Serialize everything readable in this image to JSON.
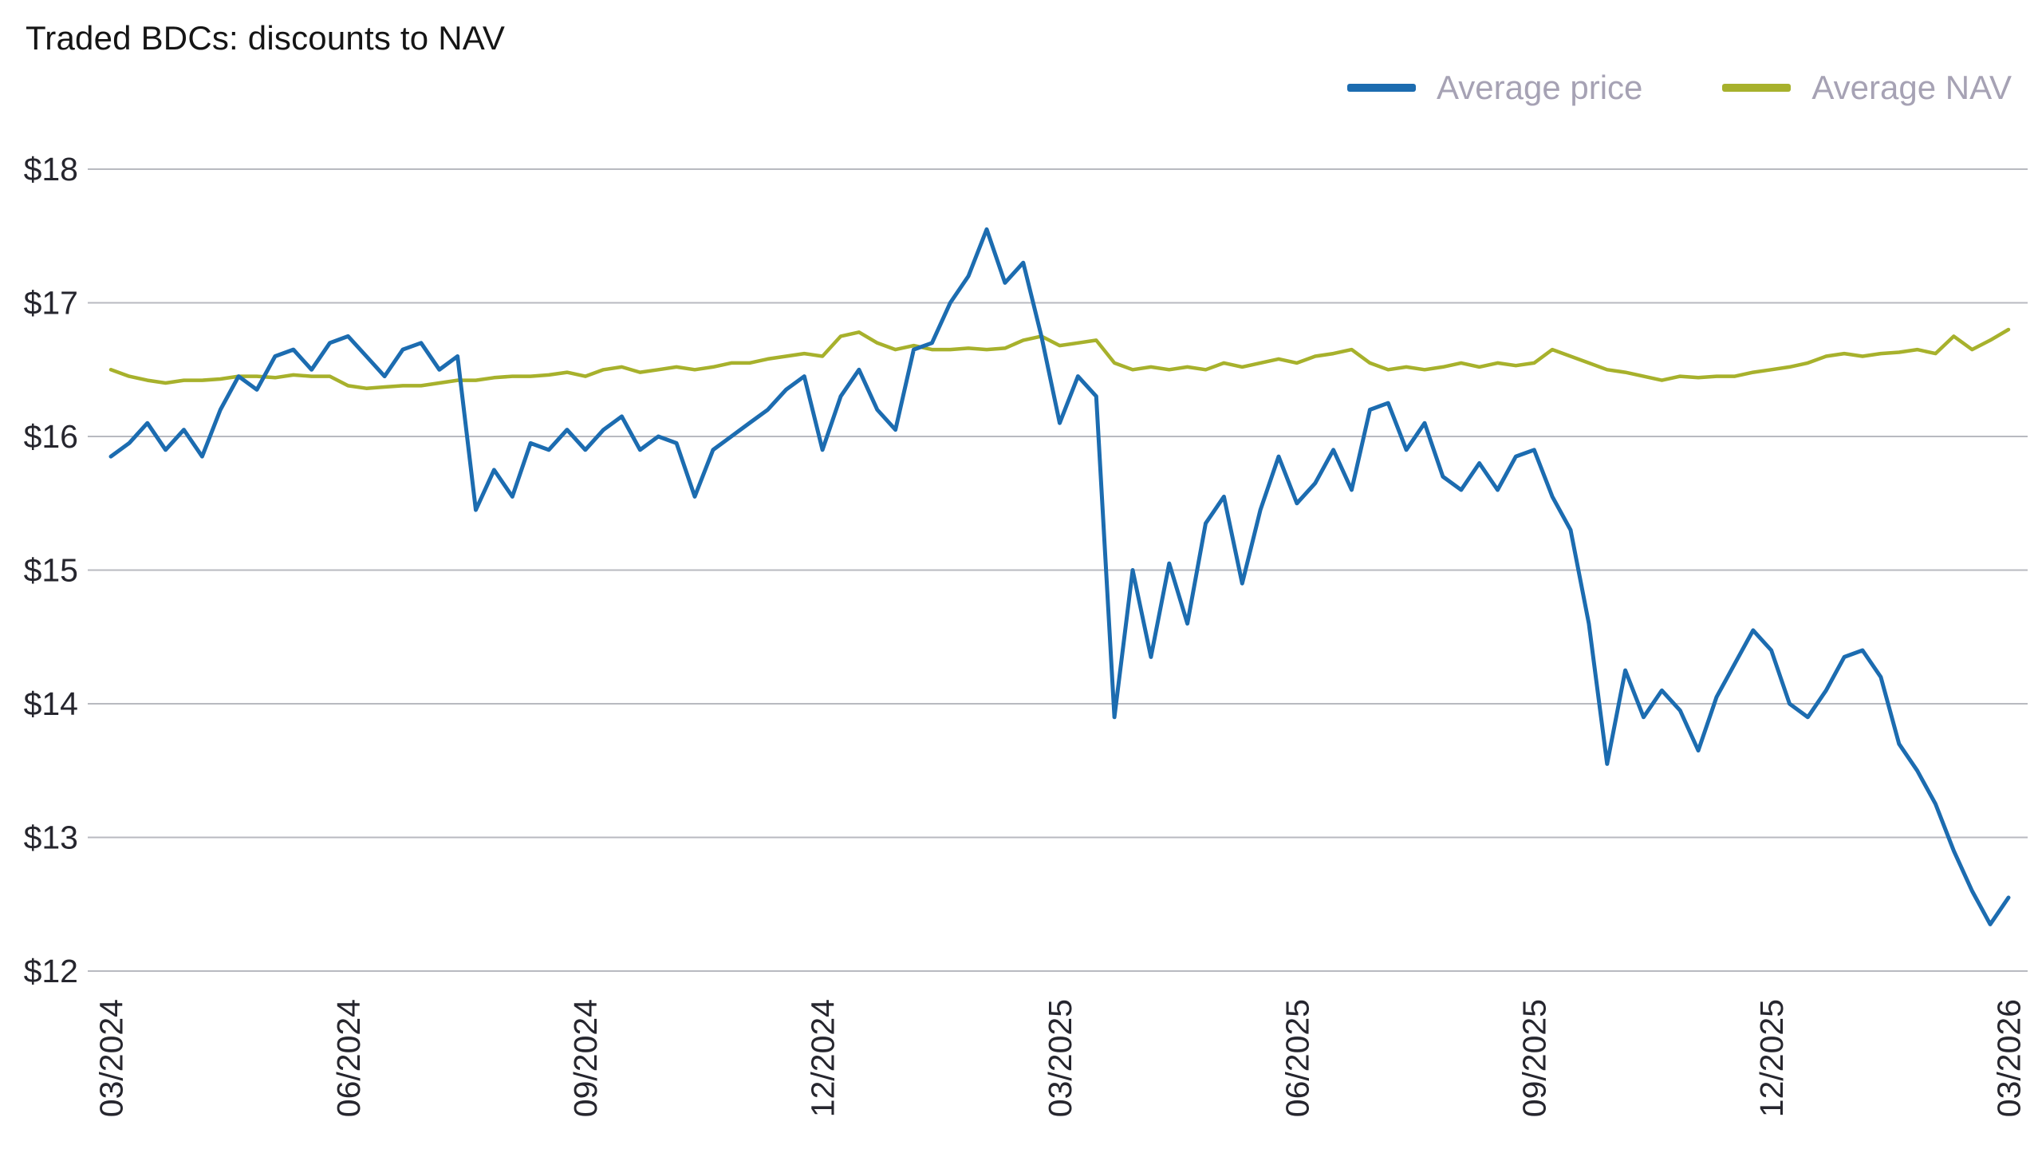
{
  "chart_data": {
    "type": "line",
    "title": "Traded BDCs: discounts to NAV",
    "x_range": [
      "03/2024",
      "03/2026"
    ],
    "x_tick_labels": [
      "03/2024",
      "06/2024",
      "09/2024",
      "12/2024",
      "03/2025",
      "06/2025",
      "09/2025",
      "12/2025",
      "03/2026"
    ],
    "y_tick_labels": [
      "$12",
      "$13",
      "$14",
      "$15",
      "$16",
      "$17",
      "$18"
    ],
    "y_ticks": [
      12,
      13,
      14,
      15,
      16,
      17,
      18
    ],
    "ylim": [
      12,
      18
    ],
    "grid": "horizontal",
    "legend_position": "top-right",
    "legend_text_color": "#a6a2b4",
    "axis_text_color": "#26262e",
    "grid_color": "#b8bac0",
    "series": [
      {
        "name": "Average price",
        "color": "#1c6cb0",
        "values": [
          15.85,
          15.95,
          16.1,
          15.9,
          16.05,
          15.85,
          16.2,
          16.45,
          16.35,
          16.6,
          16.65,
          16.5,
          16.7,
          16.75,
          16.6,
          16.45,
          16.65,
          16.7,
          16.5,
          16.6,
          15.45,
          15.75,
          15.55,
          15.95,
          15.9,
          16.05,
          15.9,
          16.05,
          16.15,
          15.9,
          16.0,
          15.95,
          15.55,
          15.9,
          16.0,
          16.1,
          16.2,
          16.35,
          16.45,
          15.9,
          16.3,
          16.5,
          16.2,
          16.05,
          16.65,
          16.7,
          17.0,
          17.2,
          17.55,
          17.15,
          17.3,
          16.75,
          16.1,
          16.45,
          16.3,
          13.9,
          15.0,
          14.35,
          15.05,
          14.6,
          15.35,
          15.55,
          14.9,
          15.45,
          15.85,
          15.5,
          15.65,
          15.9,
          15.6,
          16.2,
          16.25,
          15.9,
          16.1,
          15.7,
          15.6,
          15.8,
          15.6,
          15.85,
          15.9,
          15.55,
          15.3,
          14.6,
          13.55,
          14.25,
          13.9,
          14.1,
          13.95,
          13.65,
          14.05,
          14.3,
          14.55,
          14.4,
          14.0,
          13.9,
          14.1,
          14.35,
          14.4,
          14.2,
          13.7,
          13.5,
          13.25,
          12.9,
          12.6,
          12.35,
          12.55
        ]
      },
      {
        "name": "Average NAV",
        "color": "#a7b12c",
        "values": [
          16.5,
          16.45,
          16.42,
          16.4,
          16.42,
          16.42,
          16.43,
          16.45,
          16.45,
          16.44,
          16.46,
          16.45,
          16.45,
          16.38,
          16.36,
          16.37,
          16.38,
          16.38,
          16.4,
          16.42,
          16.42,
          16.44,
          16.45,
          16.45,
          16.46,
          16.48,
          16.45,
          16.5,
          16.52,
          16.48,
          16.5,
          16.52,
          16.5,
          16.52,
          16.55,
          16.55,
          16.58,
          16.6,
          16.62,
          16.6,
          16.75,
          16.78,
          16.7,
          16.65,
          16.68,
          16.65,
          16.65,
          16.66,
          16.65,
          16.66,
          16.72,
          16.75,
          16.68,
          16.7,
          16.72,
          16.55,
          16.5,
          16.52,
          16.5,
          16.52,
          16.5,
          16.55,
          16.52,
          16.55,
          16.58,
          16.55,
          16.6,
          16.62,
          16.65,
          16.55,
          16.5,
          16.52,
          16.5,
          16.52,
          16.55,
          16.52,
          16.55,
          16.53,
          16.55,
          16.65,
          16.6,
          16.55,
          16.5,
          16.48,
          16.45,
          16.42,
          16.45,
          16.44,
          16.45,
          16.45,
          16.48,
          16.5,
          16.52,
          16.55,
          16.6,
          16.62,
          16.6,
          16.62,
          16.63,
          16.65,
          16.62,
          16.75,
          16.65,
          16.72,
          16.8
        ]
      }
    ]
  }
}
